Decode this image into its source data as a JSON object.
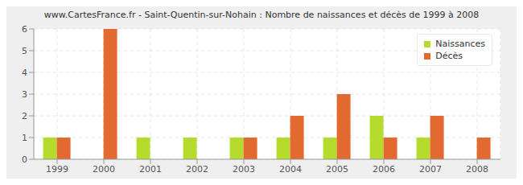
{
  "chart_data": {
    "type": "bar",
    "title": "www.CartesFrance.fr - Saint-Quentin-sur-Nohain : Nombre de naissances et décès de 1999 à 2008",
    "categories": [
      "1999",
      "2000",
      "2001",
      "2002",
      "2003",
      "2004",
      "2005",
      "2006",
      "2007",
      "2008"
    ],
    "series": [
      {
        "name": "Naissances",
        "color": "#b5dc2d",
        "values": [
          1,
          0,
          1,
          1,
          1,
          1,
          1,
          2,
          1,
          0
        ]
      },
      {
        "name": "Décès",
        "color": "#e2692f",
        "values": [
          1,
          6,
          0,
          0,
          1,
          2,
          3,
          1,
          2,
          1
        ]
      }
    ],
    "ylim": [
      0,
      6
    ],
    "yticks": [
      0,
      1,
      2,
      3,
      4,
      5,
      6
    ],
    "grid": true,
    "legend": "top right"
  }
}
